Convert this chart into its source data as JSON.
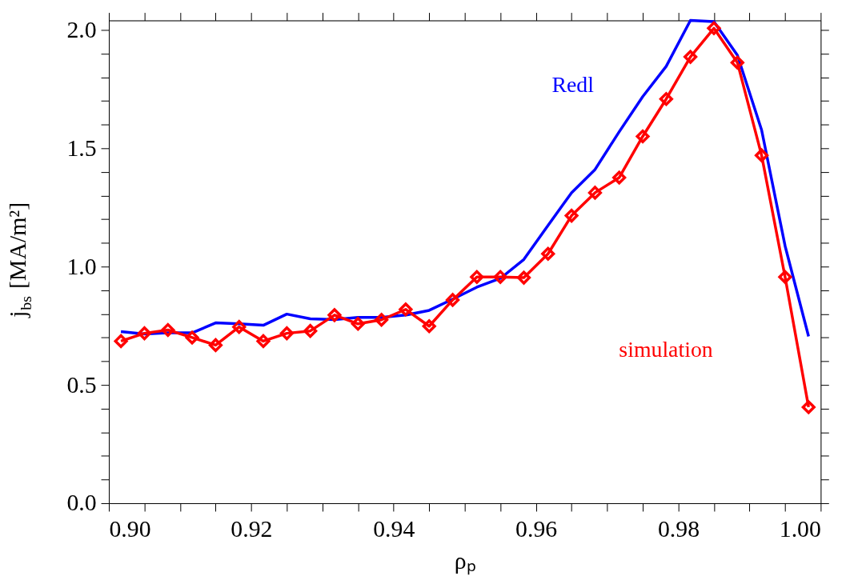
{
  "chart_data": {
    "type": "line",
    "xlabel": "ρₚ",
    "ylabel": "j$_{bs}$ [MA/m²]",
    "x": [
      0.9017,
      0.905,
      0.9083,
      0.9117,
      0.915,
      0.9183,
      0.9217,
      0.925,
      0.9283,
      0.9317,
      0.935,
      0.9383,
      0.9417,
      0.945,
      0.9483,
      0.9517,
      0.955,
      0.9583,
      0.9617,
      0.965,
      0.9683,
      0.9717,
      0.975,
      0.9783,
      0.9817,
      0.985,
      0.9883,
      0.9917,
      0.995,
      0.9983
    ],
    "series": [
      {
        "name": "Redl",
        "color": "#0000ff",
        "marker": "none",
        "values": [
          0.725,
          0.715,
          0.72,
          0.72,
          0.762,
          0.758,
          0.752,
          0.799,
          0.779,
          0.776,
          0.785,
          0.785,
          0.795,
          0.815,
          0.862,
          0.913,
          0.95,
          1.03,
          1.174,
          1.312,
          1.41,
          1.57,
          1.718,
          1.846,
          2.04,
          2.035,
          1.893,
          1.577,
          1.087,
          0.705
        ]
      },
      {
        "name": "simulation",
        "color": "#ff0000",
        "marker": "diamond",
        "values": [
          0.685,
          0.718,
          0.732,
          0.7,
          0.668,
          0.745,
          0.685,
          0.718,
          0.728,
          0.795,
          0.758,
          0.775,
          0.819,
          0.748,
          0.859,
          0.956,
          0.956,
          0.953,
          1.054,
          1.215,
          1.312,
          1.376,
          1.55,
          1.708,
          1.886,
          2.007,
          1.862,
          1.47,
          0.956,
          0.406
        ]
      }
    ],
    "xlim": [
      0.9,
      1.0
    ],
    "ylim": [
      0,
      2.04
    ],
    "xticks": [
      {
        "value": 0.9,
        "label": "0.90"
      },
      {
        "value": 0.905,
        "label": null
      },
      {
        "value": 0.91,
        "label": null
      },
      {
        "value": 0.915,
        "label": null
      },
      0.92,
      {
        "value": 0.925,
        "label": null
      },
      {
        "value": 0.93,
        "label": null
      },
      {
        "value": 0.935,
        "label": null
      },
      0.94,
      {
        "value": 0.945,
        "label": null
      },
      {
        "value": 0.95,
        "label": null
      },
      {
        "value": 0.955,
        "label": null
      },
      0.96,
      {
        "value": 0.965,
        "label": null
      },
      {
        "value": 0.97,
        "label": null
      },
      {
        "value": 0.975,
        "label": null
      },
      0.98,
      {
        "value": 0.985,
        "label": null
      },
      {
        "value": 0.99,
        "label": null
      },
      {
        "value": 0.995,
        "label": null
      },
      {
        "value": 1.0,
        "label": "1.00"
      }
    ],
    "yticks": [
      {
        "value": 0.0,
        "label": "0.0"
      },
      {
        "value": 0.1,
        "label": null
      },
      {
        "value": 0.2,
        "label": null
      },
      {
        "value": 0.3,
        "label": null
      },
      {
        "value": 0.4,
        "label": null
      },
      0.5,
      {
        "value": 0.6,
        "label": null
      },
      {
        "value": 0.7,
        "label": null
      },
      {
        "value": 0.8,
        "label": null
      },
      {
        "value": 0.9,
        "label": null
      },
      {
        "value": 1.0,
        "label": "1.0"
      },
      {
        "value": 1.1,
        "label": null
      },
      {
        "value": 1.2,
        "label": null
      },
      {
        "value": 1.3,
        "label": null
      },
      {
        "value": 1.4,
        "label": null
      },
      1.5,
      {
        "value": 1.6,
        "label": null
      },
      {
        "value": 1.7,
        "label": null
      },
      {
        "value": 1.8,
        "label": null
      },
      {
        "value": 1.9,
        "label": null
      },
      {
        "value": 2.0,
        "label": "2.0"
      }
    ],
    "grid": false,
    "line_style": "solid"
  }
}
